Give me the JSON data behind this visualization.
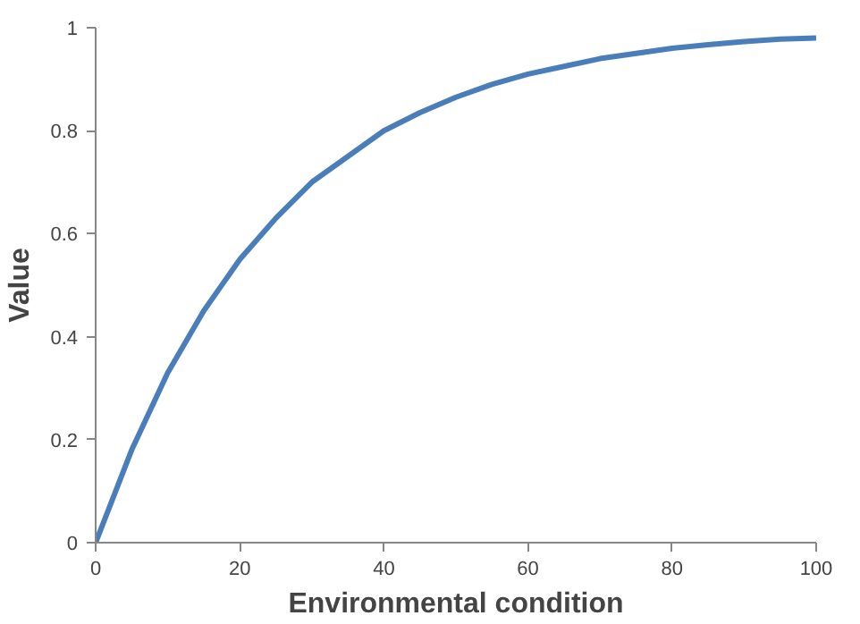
{
  "chart_data": {
    "type": "line",
    "xlabel": "Environmental condition",
    "ylabel": "Value",
    "x": [
      0,
      5,
      10,
      15,
      20,
      25,
      30,
      35,
      40,
      45,
      50,
      55,
      60,
      65,
      70,
      75,
      80,
      85,
      90,
      95,
      100
    ],
    "series": [
      {
        "color": "#4a7ebb",
        "values": [
          0,
          0.18,
          0.33,
          0.45,
          0.55,
          0.63,
          0.7,
          0.75,
          0.8,
          0.835,
          0.865,
          0.89,
          0.91,
          0.925,
          0.94,
          0.95,
          0.96,
          0.967,
          0.973,
          0.978,
          0.98
        ]
      }
    ],
    "xlim": [
      0,
      100
    ],
    "xticks": [
      0,
      20,
      40,
      60,
      80,
      100
    ],
    "ylim": [
      0,
      1
    ],
    "yticks": [
      0,
      0.2,
      0.4,
      0.6,
      0.8,
      1
    ],
    "grid": false,
    "marker": "none",
    "line_style": "solid"
  }
}
